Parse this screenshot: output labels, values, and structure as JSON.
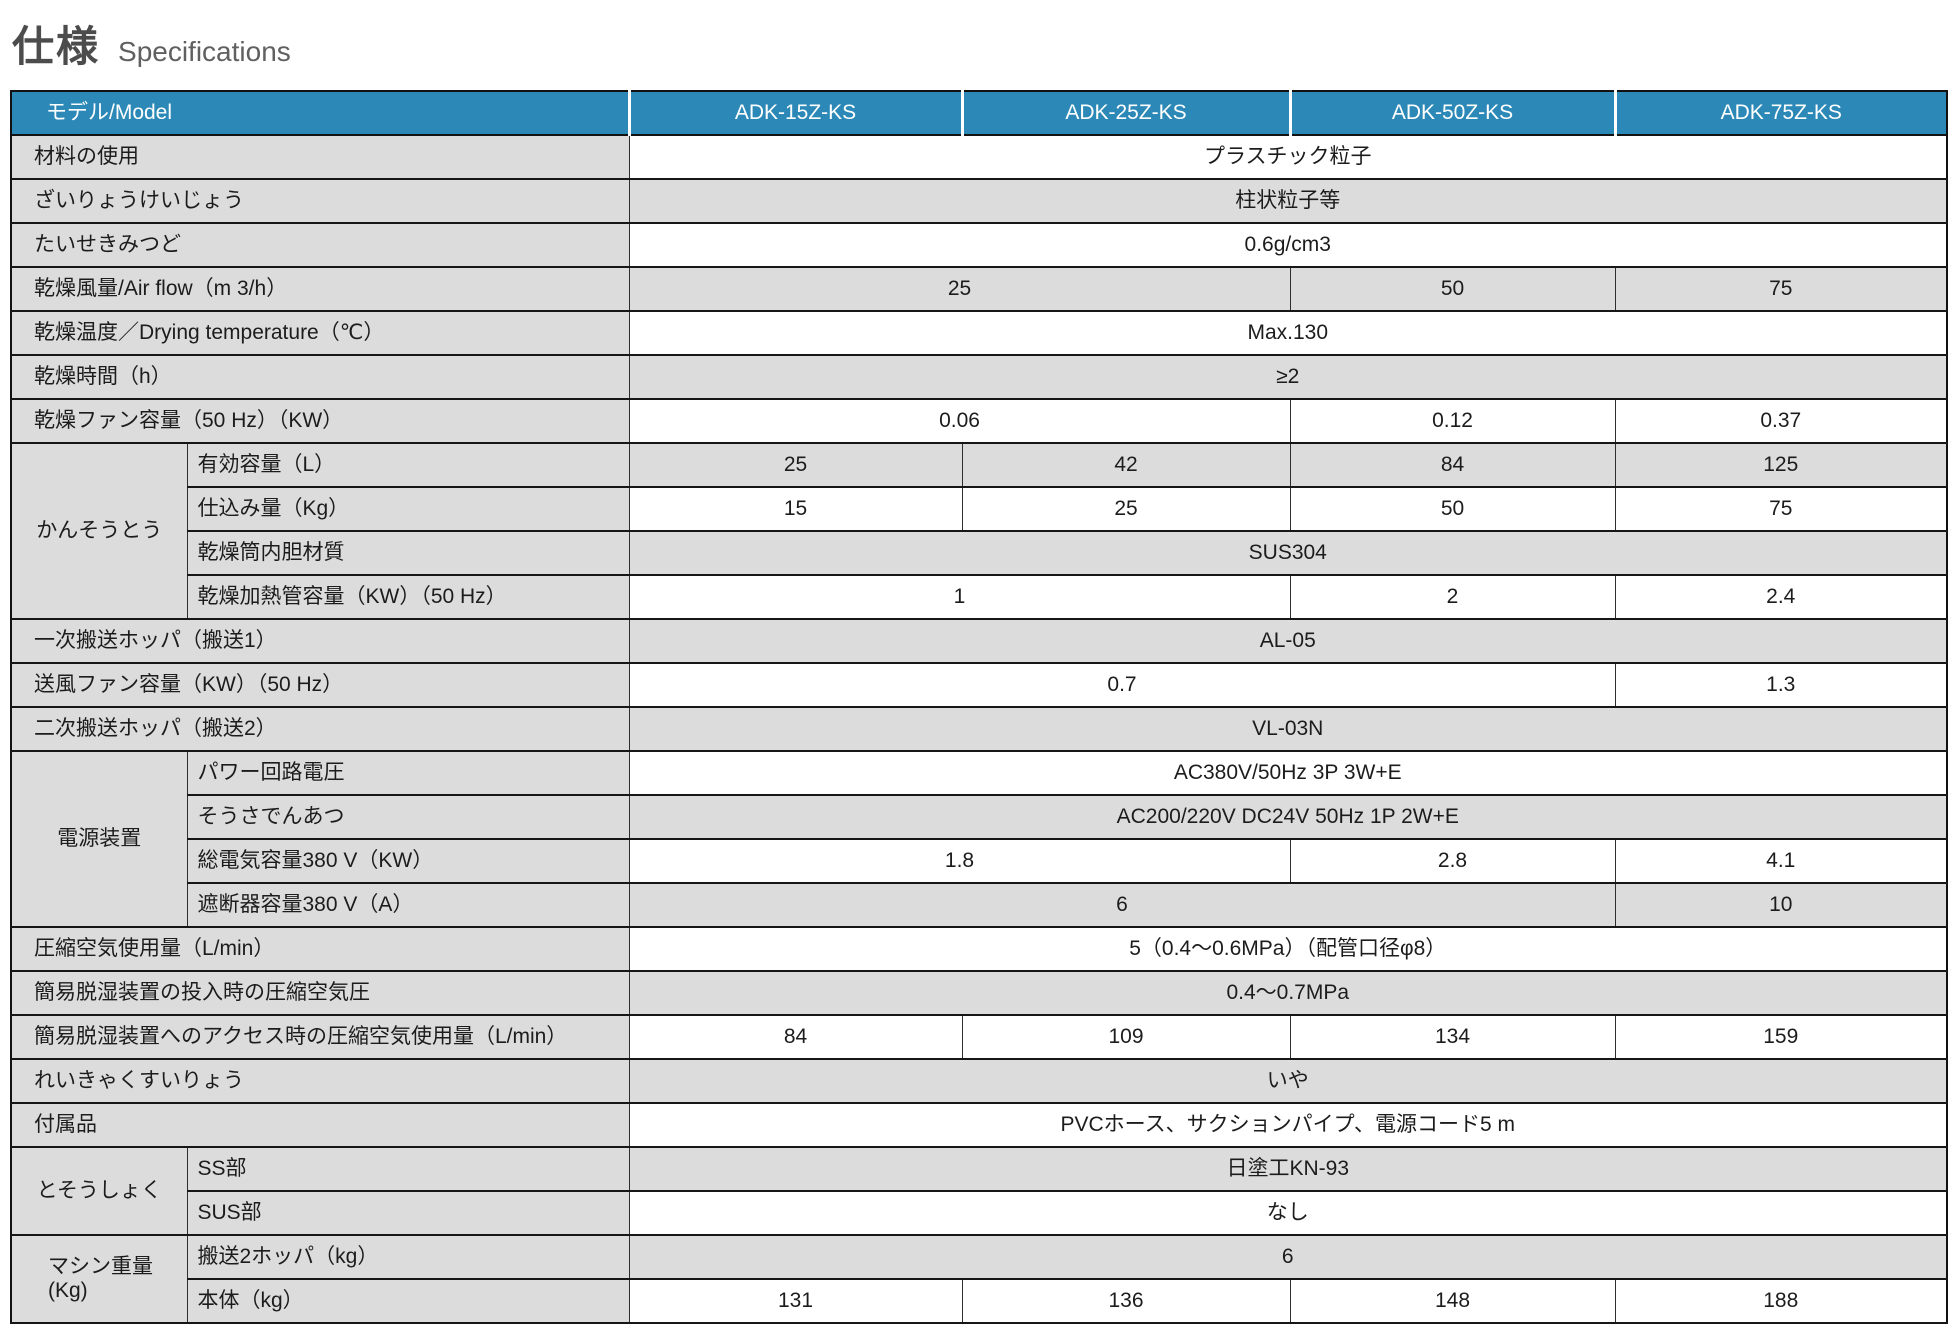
{
  "title": {
    "jp": "仕様",
    "en": "Specifications"
  },
  "colors": {
    "header_bg": "#2c89b7",
    "header_text": "#ffffff",
    "shade_bg": "#dcdcdc",
    "border": "#161616",
    "title_text": "#4c4c4c"
  },
  "table": {
    "header": [
      "モデル/Model",
      "ADK-15Z-KS",
      "ADK-25Z-KS",
      "ADK-50Z-KS",
      "ADK-75Z-KS"
    ],
    "rows": [
      {
        "label": "材料の使用",
        "cells": [
          {
            "t": "プラスチック粒子",
            "s": 4
          }
        ],
        "shade": false
      },
      {
        "label": "ざいりょうけいじょう",
        "cells": [
          {
            "t": "柱状粒子等",
            "s": 4
          }
        ],
        "shade": true
      },
      {
        "label": "たいせきみつど",
        "cells": [
          {
            "t": "0.6g/cm3",
            "s": 4
          }
        ],
        "shade": false
      },
      {
        "label": "乾燥風量/Air flow（m 3/h）",
        "cells": [
          {
            "t": "25",
            "s": 2
          },
          {
            "t": "50",
            "s": 1
          },
          {
            "t": "75",
            "s": 1
          }
        ],
        "shade": true
      },
      {
        "label": "乾燥温度／Drying temperature（℃）",
        "cells": [
          {
            "t": "Max.130",
            "s": 4
          }
        ],
        "shade": false
      },
      {
        "label": "乾燥時間（h）",
        "cells": [
          {
            "t": "≥2",
            "s": 4
          }
        ],
        "shade": true
      },
      {
        "label": "乾燥ファン容量（50 Hz）（KW）",
        "cells": [
          {
            "t": "0.06",
            "s": 2
          },
          {
            "t": "0.12",
            "s": 1
          },
          {
            "t": "0.37",
            "s": 1
          }
        ],
        "shade": false
      },
      {
        "group": {
          "label": "かんそうとう",
          "rowspan": 4
        },
        "sub": true,
        "label": "有効容量（L）",
        "cells": [
          {
            "t": "25",
            "s": 1
          },
          {
            "t": "42",
            "s": 1
          },
          {
            "t": "84",
            "s": 1
          },
          {
            "t": "125",
            "s": 1
          }
        ],
        "shade": true
      },
      {
        "sub": true,
        "label": "仕込み量（Kg）",
        "cells": [
          {
            "t": "15",
            "s": 1
          },
          {
            "t": "25",
            "s": 1
          },
          {
            "t": "50",
            "s": 1
          },
          {
            "t": "75",
            "s": 1
          }
        ],
        "shade": false
      },
      {
        "sub": true,
        "label": "乾燥筒内胆材質",
        "cells": [
          {
            "t": "SUS304",
            "s": 4
          }
        ],
        "shade": true
      },
      {
        "sub": true,
        "label": "乾燥加熱管容量（KW）（50 Hz）",
        "cells": [
          {
            "t": "1",
            "s": 2
          },
          {
            "t": "2",
            "s": 1
          },
          {
            "t": "2.4",
            "s": 1
          }
        ],
        "shade": false
      },
      {
        "label": "一次搬送ホッパ（搬送1）",
        "cells": [
          {
            "t": "AL-05",
            "s": 4
          }
        ],
        "shade": true
      },
      {
        "label": "送風ファン容量（KW）（50 Hz）",
        "cells": [
          {
            "t": "0.7",
            "s": 3
          },
          {
            "t": "1.3",
            "s": 1
          }
        ],
        "shade": false
      },
      {
        "label": "二次搬送ホッパ（搬送2）",
        "cells": [
          {
            "t": "VL-03N",
            "s": 4
          }
        ],
        "shade": true
      },
      {
        "group": {
          "label": "電源装置",
          "rowspan": 4
        },
        "sub": true,
        "label": "パワー回路電圧",
        "cells": [
          {
            "t": "AC380V/50Hz 3P 3W+E",
            "s": 4
          }
        ],
        "shade": false
      },
      {
        "sub": true,
        "label": "そうさでんあつ",
        "cells": [
          {
            "t": "AC200/220V DC24V 50Hz 1P 2W+E",
            "s": 4
          }
        ],
        "shade": true
      },
      {
        "sub": true,
        "label": "総電気容量380 V（KW）",
        "cells": [
          {
            "t": "1.8",
            "s": 2
          },
          {
            "t": "2.8",
            "s": 1
          },
          {
            "t": "4.1",
            "s": 1
          }
        ],
        "shade": false
      },
      {
        "sub": true,
        "label": "遮断器容量380 V（A）",
        "cells": [
          {
            "t": "6",
            "s": 3
          },
          {
            "t": "10",
            "s": 1
          }
        ],
        "shade": true
      },
      {
        "label": "圧縮空気使用量（L/min）",
        "cells": [
          {
            "t": "5（0.4～0.6MPa）（配管口径φ8）",
            "s": 4
          }
        ],
        "shade": false
      },
      {
        "label": "簡易脱湿装置の投入時の圧縮空気圧",
        "cells": [
          {
            "t": "0.4～0.7MPa",
            "s": 4
          }
        ],
        "shade": true
      },
      {
        "label": "簡易脱湿装置へのアクセス時の圧縮空気使用量（L/min）",
        "cells": [
          {
            "t": "84",
            "s": 1
          },
          {
            "t": "109",
            "s": 1
          },
          {
            "t": "134",
            "s": 1
          },
          {
            "t": "159",
            "s": 1
          }
        ],
        "shade": false
      },
      {
        "label": "れいきゃくすいりょう",
        "cells": [
          {
            "t": "いや",
            "s": 4
          }
        ],
        "shade": true
      },
      {
        "label": "付属品",
        "cells": [
          {
            "t": "PVCホース、サクションパイプ、電源コード5 m",
            "s": 4
          }
        ],
        "shade": false
      },
      {
        "group": {
          "label": "とそうしょく",
          "rowspan": 2
        },
        "sub": true,
        "label": "SS部",
        "cells": [
          {
            "t": "日塗工KN-93",
            "s": 4
          }
        ],
        "shade": true
      },
      {
        "sub": true,
        "label": "SUS部",
        "cells": [
          {
            "t": "なし",
            "s": 4
          }
        ],
        "shade": false
      },
      {
        "group": {
          "label": "マシン重量\n(Kg)",
          "rowspan": 2,
          "align": "left"
        },
        "sub": true,
        "label": "搬送2ホッパ（kg）",
        "cells": [
          {
            "t": "6",
            "s": 4
          }
        ],
        "shade": true
      },
      {
        "sub": true,
        "label": "本体（kg）",
        "cells": [
          {
            "t": "131",
            "s": 1
          },
          {
            "t": "136",
            "s": 1
          },
          {
            "t": "148",
            "s": 1
          },
          {
            "t": "188",
            "s": 1
          }
        ],
        "shade": false
      }
    ]
  }
}
